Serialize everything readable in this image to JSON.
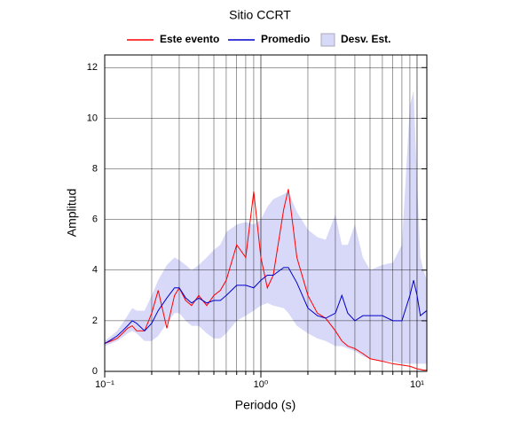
{
  "chart_data": {
    "type": "line",
    "title": "Sitio CCRT",
    "x_label": "Periodo (s)",
    "y_label": "Amplitud",
    "x_scale": "log",
    "grid": true,
    "xlim": [
      0.1,
      11.55
    ],
    "ylim": [
      0,
      12.5
    ],
    "xticks": [
      {
        "value": 0.1,
        "label": "10⁻¹"
      },
      {
        "value": 1,
        "label": "10⁰"
      },
      {
        "value": 10,
        "label": "10¹"
      }
    ],
    "xminorticks": [
      0.2,
      0.3,
      0.4,
      0.5,
      0.6,
      0.7,
      0.8,
      0.9,
      2,
      3,
      4,
      5,
      6,
      7,
      8,
      9
    ],
    "yticks": [
      0,
      2,
      4,
      6,
      8,
      10,
      12
    ],
    "x": [
      0.1,
      0.11,
      0.12,
      0.13,
      0.14,
      0.15,
      0.16,
      0.18,
      0.2,
      0.22,
      0.25,
      0.28,
      0.3,
      0.33,
      0.36,
      0.4,
      0.45,
      0.5,
      0.55,
      0.6,
      0.7,
      0.8,
      0.9,
      1.0,
      1.1,
      1.2,
      1.4,
      1.5,
      1.7,
      2,
      2.3,
      2.6,
      3,
      3.3,
      3.6,
      4,
      4.5,
      5,
      6,
      7,
      8,
      9,
      9.5,
      10,
      10.5,
      11,
      11.55
    ],
    "series": [
      {
        "name": "Este evento",
        "color": "#ff0000",
        "values": [
          1.1,
          1.2,
          1.3,
          1.5,
          1.7,
          1.8,
          1.6,
          1.6,
          2.3,
          3.2,
          1.7,
          3.0,
          3.3,
          2.8,
          2.6,
          3.0,
          2.6,
          3.0,
          3.2,
          3.6,
          5.0,
          4.5,
          7.1,
          4.5,
          3.3,
          3.8,
          6.4,
          7.2,
          4.5,
          3.0,
          2.3,
          2.1,
          1.6,
          1.2,
          1.0,
          0.9,
          0.7,
          0.5,
          0.4,
          0.3,
          0.25,
          0.2,
          0.15,
          0.1,
          0.08,
          0.05,
          0.05
        ]
      },
      {
        "name": "Promedio",
        "color": "#0000cc",
        "values": [
          1.1,
          1.25,
          1.4,
          1.6,
          1.8,
          2.0,
          1.9,
          1.6,
          1.9,
          2.4,
          2.9,
          3.3,
          3.3,
          2.9,
          2.7,
          2.9,
          2.7,
          2.8,
          2.8,
          3.0,
          3.4,
          3.4,
          3.3,
          3.6,
          3.8,
          3.8,
          4.1,
          4.1,
          3.5,
          2.5,
          2.2,
          2.1,
          2.3,
          3.0,
          2.3,
          2.0,
          2.2,
          2.2,
          2.2,
          2.0,
          2.0,
          3.0,
          3.6,
          3.0,
          2.2,
          2.3,
          2.4
        ]
      },
      {
        "name": "Desv. Est.",
        "color": "#d8d8f8",
        "upper": [
          1.2,
          1.4,
          1.6,
          1.9,
          2.2,
          2.5,
          2.4,
          2.4,
          3.0,
          3.6,
          4.2,
          4.5,
          4.4,
          4.2,
          4.0,
          4.2,
          4.5,
          4.8,
          5.0,
          5.5,
          5.8,
          5.9,
          5.8,
          6.0,
          6.5,
          6.8,
          7.0,
          7.1,
          6.3,
          5.6,
          5.3,
          5.2,
          6.2,
          5.0,
          5.0,
          5.8,
          4.5,
          4.0,
          4.2,
          4.3,
          5.0,
          10.5,
          11.1,
          7.5,
          4.5,
          4.0,
          3.6
        ],
        "lower": [
          1.0,
          1.1,
          1.2,
          1.35,
          1.5,
          1.6,
          1.5,
          1.2,
          1.2,
          1.4,
          1.9,
          2.3,
          2.3,
          2.0,
          1.8,
          1.8,
          1.5,
          1.3,
          1.3,
          1.5,
          2.0,
          2.2,
          2.4,
          2.6,
          2.7,
          2.6,
          2.5,
          2.3,
          1.8,
          1.5,
          1.3,
          1.2,
          1.0,
          1.0,
          0.9,
          0.8,
          0.6,
          0.5,
          0.4,
          0.4,
          0.3,
          0.3,
          0.3,
          0.3,
          0.3,
          0.3,
          0.3
        ]
      }
    ]
  }
}
